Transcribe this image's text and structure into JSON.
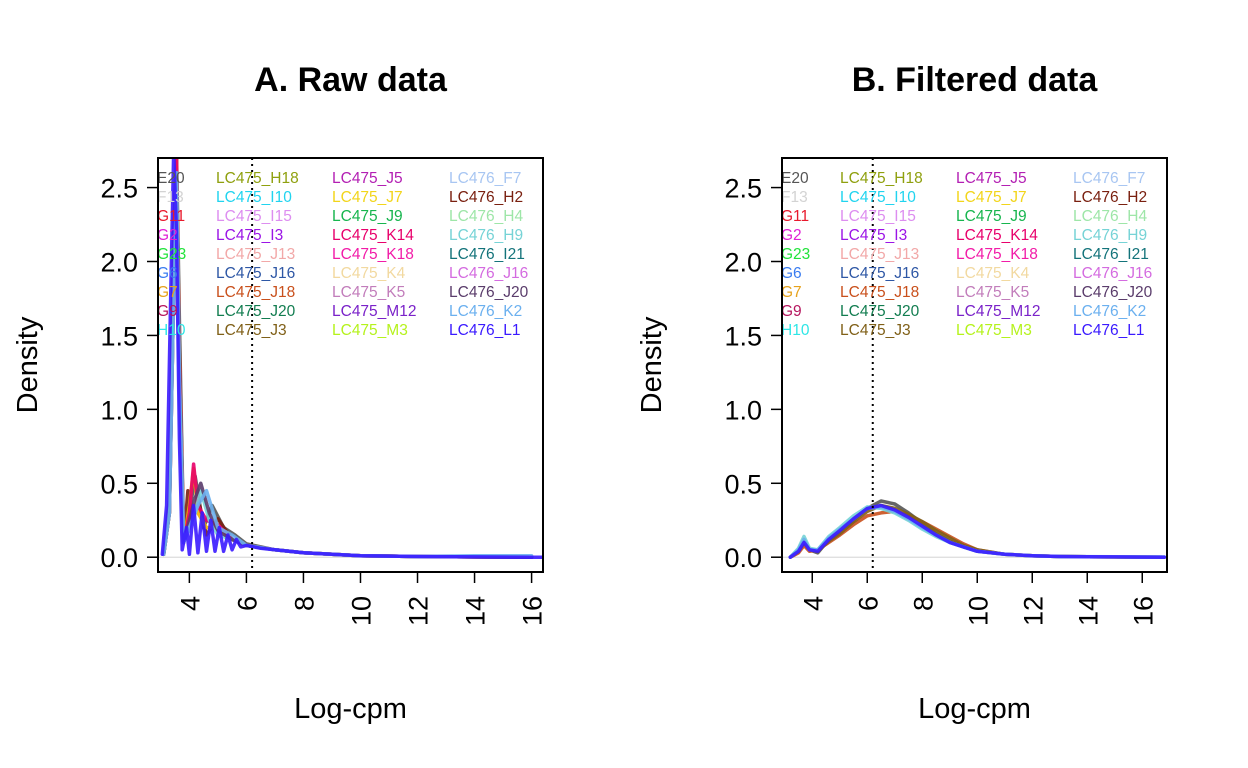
{
  "chart_data": [
    {
      "type": "line",
      "title": "A. Raw data",
      "xlabel": "Log-cpm",
      "ylabel": "Density",
      "xlim": [
        2.9,
        16.4
      ],
      "ylim": [
        -0.1,
        2.7
      ],
      "xticks": [
        "4",
        "6",
        "8",
        "10",
        "12",
        "14",
        "16"
      ],
      "yticks": [
        "0.0",
        "0.5",
        "1.0",
        "1.5",
        "2.0",
        "2.5"
      ],
      "vline": 6.2,
      "hline": 0,
      "legend_position": "top",
      "series": [
        {
          "name": "E20",
          "color": "#555555",
          "x": [
            3.1,
            3.3,
            3.45,
            3.55,
            3.65,
            3.8,
            4.0,
            4.2,
            4.5,
            4.8,
            5.2,
            5.6,
            6.0,
            7.0,
            8.0,
            10.0,
            12.0,
            14.0,
            16.0
          ],
          "y": [
            0.02,
            0.4,
            2.2,
            2.75,
            1.6,
            0.1,
            0.3,
            0.55,
            0.2,
            0.35,
            0.2,
            0.15,
            0.09,
            0.05,
            0.03,
            0.01,
            0.005,
            0.002,
            0.0
          ]
        },
        {
          "name": "LC476_H2",
          "color": "#7a2010",
          "x": [
            3.1,
            3.3,
            3.45,
            3.55,
            3.65,
            3.8,
            3.95,
            4.1,
            4.3,
            4.6,
            5.0,
            5.5,
            6.0,
            7.0,
            8.0,
            10.0,
            12.0,
            14.0,
            16.0
          ],
          "y": [
            0.02,
            0.3,
            2.0,
            2.7,
            1.4,
            0.1,
            0.45,
            0.25,
            0.4,
            0.15,
            0.26,
            0.12,
            0.08,
            0.05,
            0.03,
            0.01,
            0.005,
            0.002,
            0.0
          ]
        },
        {
          "name": "LC475_J7",
          "color": "#f2b400",
          "x": [
            3.1,
            3.3,
            3.45,
            3.55,
            3.65,
            3.8,
            4.0,
            4.15,
            4.3,
            4.6,
            5.0,
            5.5,
            6.0,
            7.0,
            8.0,
            10.0,
            12.0,
            14.0,
            16.0
          ],
          "y": [
            0.02,
            0.3,
            1.9,
            2.7,
            1.3,
            0.1,
            0.35,
            0.6,
            0.3,
            0.2,
            0.2,
            0.12,
            0.08,
            0.05,
            0.03,
            0.01,
            0.005,
            0.002,
            0.0
          ]
        },
        {
          "name": "LC475_K14",
          "color": "#e8006b",
          "x": [
            3.1,
            3.3,
            3.45,
            3.55,
            3.65,
            3.8,
            4.0,
            4.15,
            4.3,
            4.6,
            5.0,
            5.5,
            6.0,
            7.0,
            8.0,
            10.0,
            12.0,
            14.0,
            16.0
          ],
          "y": [
            0.02,
            0.3,
            1.8,
            2.7,
            1.3,
            0.1,
            0.3,
            0.63,
            0.35,
            0.25,
            0.22,
            0.12,
            0.08,
            0.05,
            0.03,
            0.01,
            0.005,
            0.002,
            0.0
          ]
        },
        {
          "name": "LC476_H9",
          "color": "#76d3d6",
          "x": [
            3.1,
            3.3,
            3.45,
            3.55,
            3.65,
            3.8,
            4.0,
            4.2,
            4.4,
            4.7,
            5.0,
            5.5,
            6.0,
            7.0,
            8.0,
            10.0,
            12.0,
            14.0,
            16.0
          ],
          "y": [
            0.02,
            0.3,
            1.8,
            2.6,
            1.2,
            0.1,
            0.2,
            0.3,
            0.45,
            0.25,
            0.15,
            0.12,
            0.08,
            0.05,
            0.03,
            0.01,
            0.005,
            0.002,
            0.0
          ]
        },
        {
          "name": "LC476_J20",
          "color": "#5a3c6b",
          "x": [
            3.1,
            3.3,
            3.45,
            3.55,
            3.65,
            3.8,
            4.0,
            4.2,
            4.4,
            4.7,
            5.0,
            5.5,
            6.0,
            7.0,
            8.0,
            10.0,
            12.0,
            14.0,
            16.0
          ],
          "y": [
            0.02,
            0.3,
            1.8,
            2.6,
            1.2,
            0.1,
            0.25,
            0.4,
            0.5,
            0.3,
            0.18,
            0.12,
            0.08,
            0.05,
            0.03,
            0.01,
            0.005,
            0.002,
            0.0
          ]
        },
        {
          "name": "LC476_K2",
          "color": "#6bb0ef",
          "x": [
            3.1,
            3.3,
            3.45,
            3.55,
            3.65,
            3.8,
            4.0,
            4.3,
            4.6,
            5.0,
            5.5,
            6.0,
            7.0,
            8.0,
            10.0,
            12.0,
            14.0,
            16.0
          ],
          "y": [
            0.02,
            0.3,
            1.8,
            2.6,
            1.2,
            0.1,
            0.2,
            0.35,
            0.45,
            0.2,
            0.15,
            0.08,
            0.05,
            0.03,
            0.01,
            0.005,
            0.01,
            0.01
          ]
        },
        {
          "name": "LC476_L1",
          "color": "#3a1aff",
          "x": [
            3.05,
            3.2,
            3.35,
            3.45,
            3.55,
            3.65,
            3.75,
            3.9,
            4.0,
            4.15,
            4.3,
            4.45,
            4.6,
            4.75,
            4.9,
            5.05,
            5.2,
            5.35,
            5.5,
            5.65,
            5.8,
            6.0,
            6.5,
            7.0,
            8.0,
            9.0,
            10.0,
            12.0,
            14.0,
            16.0,
            16.4
          ],
          "y": [
            0.02,
            0.35,
            1.8,
            2.75,
            2.2,
            0.8,
            0.05,
            0.2,
            0.02,
            0.35,
            0.03,
            0.3,
            0.04,
            0.25,
            0.04,
            0.2,
            0.04,
            0.15,
            0.05,
            0.12,
            0.07,
            0.08,
            0.06,
            0.05,
            0.03,
            0.02,
            0.01,
            0.005,
            0.002,
            0.0,
            0.0
          ]
        }
      ],
      "legend": [
        {
          "label": "E20",
          "color": "#555555"
        },
        {
          "label": "F13",
          "color": "#d3d3d3"
        },
        {
          "label": "G11",
          "color": "#e8192c"
        },
        {
          "label": "G2",
          "color": "#e01fd5"
        },
        {
          "label": "G23",
          "color": "#22e33b"
        },
        {
          "label": "G6",
          "color": "#3a7cf0"
        },
        {
          "label": "G7",
          "color": "#e6a21c"
        },
        {
          "label": "G9",
          "color": "#b5165e"
        },
        {
          "label": "H10",
          "color": "#2ee6e6"
        },
        {
          "label": "LC475_H18",
          "color": "#8fa00e"
        },
        {
          "label": "LC475_I10",
          "color": "#21d4ef"
        },
        {
          "label": "LC475_I15",
          "color": "#dd8ef0"
        },
        {
          "label": "LC475_I3",
          "color": "#9b14e6"
        },
        {
          "label": "LC475_J13",
          "color": "#f2a8a8"
        },
        {
          "label": "LC475_J16",
          "color": "#2e57a5"
        },
        {
          "label": "LC475_J18",
          "color": "#c9501c"
        },
        {
          "label": "LC475_J20",
          "color": "#127d50"
        },
        {
          "label": "LC475_J3",
          "color": "#806018"
        },
        {
          "label": "LC475_J5",
          "color": "#b31fb3"
        },
        {
          "label": "LC475_J7",
          "color": "#f2d51b"
        },
        {
          "label": "LC475_J9",
          "color": "#17b54e"
        },
        {
          "label": "LC475_K14",
          "color": "#e8006b"
        },
        {
          "label": "LC475_K18",
          "color": "#f21ca8"
        },
        {
          "label": "LC475_K4",
          "color": "#f2d9a0"
        },
        {
          "label": "LC475_K5",
          "color": "#c27dbb"
        },
        {
          "label": "LC475_M12",
          "color": "#7a22c9"
        },
        {
          "label": "LC475_M3",
          "color": "#b5f21c"
        },
        {
          "label": "LC476_F7",
          "color": "#a8c6f2"
        },
        {
          "label": "LC476_H2",
          "color": "#7a2010"
        },
        {
          "label": "LC476_H4",
          "color": "#9ee6a8"
        },
        {
          "label": "LC476_H9",
          "color": "#76d3d6"
        },
        {
          "label": "LC476_I21",
          "color": "#13737a"
        },
        {
          "label": "LC476_J16",
          "color": "#d46be0"
        },
        {
          "label": "LC476_J20",
          "color": "#5a3c6b"
        },
        {
          "label": "LC476_K2",
          "color": "#6bb0ef"
        },
        {
          "label": "LC476_L1",
          "color": "#3a1aff"
        }
      ]
    },
    {
      "type": "line",
      "title": "B. Filtered data",
      "xlabel": "Log-cpm",
      "ylabel": "Density",
      "xlim": [
        2.9,
        16.9
      ],
      "ylim": [
        -0.1,
        2.7
      ],
      "xticks": [
        "4",
        "6",
        "8",
        "10",
        "12",
        "14",
        "16"
      ],
      "yticks": [
        "0.0",
        "0.5",
        "1.0",
        "1.5",
        "2.0",
        "2.5"
      ],
      "vline": 6.2,
      "hline": 0,
      "legend_position": "top",
      "series": [
        {
          "name": "E20",
          "color": "#555555",
          "x": [
            3.2,
            3.5,
            3.7,
            3.9,
            4.2,
            4.6,
            5.0,
            5.5,
            6.0,
            6.5,
            7.0,
            7.5,
            8.0,
            8.5,
            9.0,
            9.5,
            10.0,
            11.0,
            12.0,
            13.0,
            14.0,
            15.0,
            16.0,
            16.8
          ],
          "y": [
            0.0,
            0.05,
            0.12,
            0.05,
            0.03,
            0.12,
            0.18,
            0.25,
            0.33,
            0.38,
            0.36,
            0.3,
            0.23,
            0.16,
            0.11,
            0.07,
            0.04,
            0.02,
            0.01,
            0.005,
            0.003,
            0.002,
            0.001,
            0.0
          ]
        },
        {
          "name": "LC475_J18",
          "color": "#c9501c",
          "x": [
            3.2,
            3.5,
            3.7,
            3.9,
            4.2,
            4.6,
            5.0,
            5.5,
            6.0,
            6.5,
            7.0,
            7.5,
            8.0,
            8.5,
            9.0,
            9.5,
            10.0,
            11.0,
            12.0,
            13.0,
            14.0,
            15.0,
            16.0,
            16.8
          ],
          "y": [
            0.0,
            0.03,
            0.08,
            0.04,
            0.05,
            0.1,
            0.15,
            0.22,
            0.28,
            0.3,
            0.31,
            0.28,
            0.24,
            0.19,
            0.14,
            0.09,
            0.05,
            0.02,
            0.01,
            0.005,
            0.003,
            0.002,
            0.001,
            0.0
          ]
        },
        {
          "name": "LC475_J3",
          "color": "#806018",
          "x": [
            3.2,
            3.5,
            3.7,
            3.9,
            4.2,
            4.6,
            5.0,
            5.5,
            6.0,
            6.5,
            7.0,
            7.5,
            8.0,
            8.5,
            9.0,
            9.5,
            10.0,
            11.0,
            12.0,
            13.0,
            14.0,
            15.0,
            16.0,
            16.8
          ],
          "y": [
            0.0,
            0.04,
            0.1,
            0.05,
            0.04,
            0.11,
            0.16,
            0.24,
            0.31,
            0.35,
            0.33,
            0.29,
            0.24,
            0.18,
            0.13,
            0.08,
            0.05,
            0.02,
            0.01,
            0.005,
            0.003,
            0.002,
            0.001,
            0.0
          ]
        },
        {
          "name": "LC476_H9",
          "color": "#76d3d6",
          "x": [
            3.2,
            3.5,
            3.7,
            3.9,
            4.2,
            4.6,
            5.0,
            5.5,
            6.0,
            6.5,
            7.0,
            7.5,
            8.0,
            8.5,
            9.0,
            9.5,
            10.0,
            11.0,
            12.0,
            13.0,
            14.0,
            15.0,
            16.0,
            16.8
          ],
          "y": [
            0.0,
            0.06,
            0.14,
            0.06,
            0.05,
            0.14,
            0.2,
            0.28,
            0.34,
            0.33,
            0.3,
            0.25,
            0.19,
            0.14,
            0.1,
            0.07,
            0.04,
            0.02,
            0.01,
            0.005,
            0.003,
            0.002,
            0.001,
            0.0
          ]
        },
        {
          "name": "LC476_K2",
          "color": "#6bb0ef",
          "x": [
            3.2,
            3.5,
            3.7,
            3.9,
            4.2,
            4.6,
            5.0,
            5.5,
            6.0,
            6.5,
            7.0,
            7.5,
            8.0,
            8.5,
            9.0,
            9.5,
            10.0,
            11.0,
            12.0,
            13.0,
            14.0,
            15.0,
            16.0,
            16.8
          ],
          "y": [
            0.0,
            0.05,
            0.12,
            0.05,
            0.05,
            0.13,
            0.19,
            0.26,
            0.33,
            0.34,
            0.31,
            0.26,
            0.2,
            0.15,
            0.1,
            0.07,
            0.04,
            0.02,
            0.01,
            0.005,
            0.004,
            0.003,
            0.002,
            0.002
          ]
        },
        {
          "name": "LC476_L1",
          "color": "#3a1aff",
          "x": [
            3.2,
            3.5,
            3.7,
            3.9,
            4.2,
            4.6,
            5.0,
            5.5,
            6.0,
            6.5,
            7.0,
            7.5,
            8.0,
            8.5,
            9.0,
            9.5,
            10.0,
            11.0,
            12.0,
            13.0,
            14.0,
            15.0,
            16.0,
            16.8
          ],
          "y": [
            0.0,
            0.04,
            0.1,
            0.05,
            0.04,
            0.12,
            0.18,
            0.26,
            0.33,
            0.35,
            0.32,
            0.27,
            0.21,
            0.15,
            0.1,
            0.07,
            0.04,
            0.02,
            0.01,
            0.005,
            0.003,
            0.002,
            0.001,
            0.0
          ]
        }
      ],
      "legend": [
        {
          "label": "E20",
          "color": "#555555"
        },
        {
          "label": "F13",
          "color": "#d3d3d3"
        },
        {
          "label": "G11",
          "color": "#e8192c"
        },
        {
          "label": "G2",
          "color": "#e01fd5"
        },
        {
          "label": "G23",
          "color": "#22e33b"
        },
        {
          "label": "G6",
          "color": "#3a7cf0"
        },
        {
          "label": "G7",
          "color": "#e6a21c"
        },
        {
          "label": "G9",
          "color": "#b5165e"
        },
        {
          "label": "H10",
          "color": "#2ee6e6"
        },
        {
          "label": "LC475_H18",
          "color": "#8fa00e"
        },
        {
          "label": "LC475_I10",
          "color": "#21d4ef"
        },
        {
          "label": "LC475_I15",
          "color": "#dd8ef0"
        },
        {
          "label": "LC475_I3",
          "color": "#9b14e6"
        },
        {
          "label": "LC475_J13",
          "color": "#f2a8a8"
        },
        {
          "label": "LC475_J16",
          "color": "#2e57a5"
        },
        {
          "label": "LC475_J18",
          "color": "#c9501c"
        },
        {
          "label": "LC475_J20",
          "color": "#127d50"
        },
        {
          "label": "LC475_J3",
          "color": "#806018"
        },
        {
          "label": "LC475_J5",
          "color": "#b31fb3"
        },
        {
          "label": "LC475_J7",
          "color": "#f2d51b"
        },
        {
          "label": "LC475_J9",
          "color": "#17b54e"
        },
        {
          "label": "LC475_K14",
          "color": "#e8006b"
        },
        {
          "label": "LC475_K18",
          "color": "#f21ca8"
        },
        {
          "label": "LC475_K4",
          "color": "#f2d9a0"
        },
        {
          "label": "LC475_K5",
          "color": "#c27dbb"
        },
        {
          "label": "LC475_M12",
          "color": "#7a22c9"
        },
        {
          "label": "LC475_M3",
          "color": "#b5f21c"
        },
        {
          "label": "LC476_F7",
          "color": "#a8c6f2"
        },
        {
          "label": "LC476_H2",
          "color": "#7a2010"
        },
        {
          "label": "LC476_H4",
          "color": "#9ee6a8"
        },
        {
          "label": "LC476_H9",
          "color": "#76d3d6"
        },
        {
          "label": "LC476_I21",
          "color": "#13737a"
        },
        {
          "label": "LC476_J16",
          "color": "#d46be0"
        },
        {
          "label": "LC476_J20",
          "color": "#5a3c6b"
        },
        {
          "label": "LC476_K2",
          "color": "#6bb0ef"
        },
        {
          "label": "LC476_L1",
          "color": "#3a1aff"
        }
      ]
    }
  ]
}
